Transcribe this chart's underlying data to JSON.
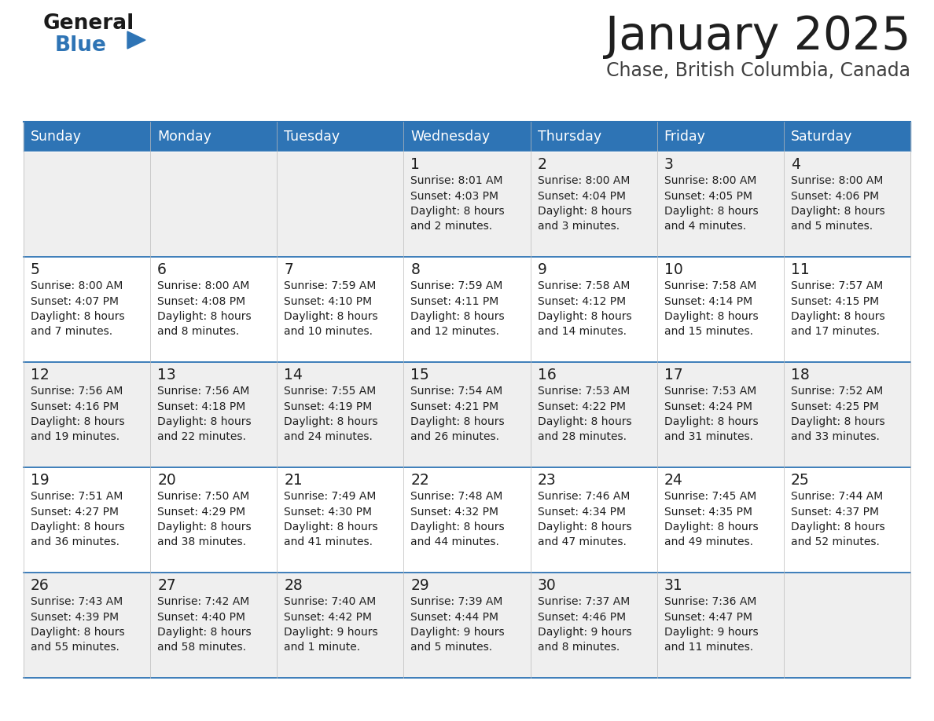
{
  "title": "January 2025",
  "subtitle": "Chase, British Columbia, Canada",
  "header_bg_color": "#2E74B5",
  "header_text_color": "#FFFFFF",
  "day_names": [
    "Sunday",
    "Monday",
    "Tuesday",
    "Wednesday",
    "Thursday",
    "Friday",
    "Saturday"
  ],
  "row_bg_even": "#EFEFEF",
  "row_bg_odd": "#FFFFFF",
  "cell_border_color": "#2E74B5",
  "date_color": "#1F1F1F",
  "info_color": "#1F1F1F",
  "title_color": "#1F1F1F",
  "subtitle_color": "#404040",
  "logo_general_color": "#1A1A1A",
  "logo_blue_color": "#2E74B5",
  "calendar_data": [
    [
      {
        "day": null,
        "sunrise": null,
        "sunset": null,
        "daylight": null
      },
      {
        "day": null,
        "sunrise": null,
        "sunset": null,
        "daylight": null
      },
      {
        "day": null,
        "sunrise": null,
        "sunset": null,
        "daylight": null
      },
      {
        "day": 1,
        "sunrise": "8:01 AM",
        "sunset": "4:03 PM",
        "daylight": "8 hours\nand 2 minutes."
      },
      {
        "day": 2,
        "sunrise": "8:00 AM",
        "sunset": "4:04 PM",
        "daylight": "8 hours\nand 3 minutes."
      },
      {
        "day": 3,
        "sunrise": "8:00 AM",
        "sunset": "4:05 PM",
        "daylight": "8 hours\nand 4 minutes."
      },
      {
        "day": 4,
        "sunrise": "8:00 AM",
        "sunset": "4:06 PM",
        "daylight": "8 hours\nand 5 minutes."
      }
    ],
    [
      {
        "day": 5,
        "sunrise": "8:00 AM",
        "sunset": "4:07 PM",
        "daylight": "8 hours\nand 7 minutes."
      },
      {
        "day": 6,
        "sunrise": "8:00 AM",
        "sunset": "4:08 PM",
        "daylight": "8 hours\nand 8 minutes."
      },
      {
        "day": 7,
        "sunrise": "7:59 AM",
        "sunset": "4:10 PM",
        "daylight": "8 hours\nand 10 minutes."
      },
      {
        "day": 8,
        "sunrise": "7:59 AM",
        "sunset": "4:11 PM",
        "daylight": "8 hours\nand 12 minutes."
      },
      {
        "day": 9,
        "sunrise": "7:58 AM",
        "sunset": "4:12 PM",
        "daylight": "8 hours\nand 14 minutes."
      },
      {
        "day": 10,
        "sunrise": "7:58 AM",
        "sunset": "4:14 PM",
        "daylight": "8 hours\nand 15 minutes."
      },
      {
        "day": 11,
        "sunrise": "7:57 AM",
        "sunset": "4:15 PM",
        "daylight": "8 hours\nand 17 minutes."
      }
    ],
    [
      {
        "day": 12,
        "sunrise": "7:56 AM",
        "sunset": "4:16 PM",
        "daylight": "8 hours\nand 19 minutes."
      },
      {
        "day": 13,
        "sunrise": "7:56 AM",
        "sunset": "4:18 PM",
        "daylight": "8 hours\nand 22 minutes."
      },
      {
        "day": 14,
        "sunrise": "7:55 AM",
        "sunset": "4:19 PM",
        "daylight": "8 hours\nand 24 minutes."
      },
      {
        "day": 15,
        "sunrise": "7:54 AM",
        "sunset": "4:21 PM",
        "daylight": "8 hours\nand 26 minutes."
      },
      {
        "day": 16,
        "sunrise": "7:53 AM",
        "sunset": "4:22 PM",
        "daylight": "8 hours\nand 28 minutes."
      },
      {
        "day": 17,
        "sunrise": "7:53 AM",
        "sunset": "4:24 PM",
        "daylight": "8 hours\nand 31 minutes."
      },
      {
        "day": 18,
        "sunrise": "7:52 AM",
        "sunset": "4:25 PM",
        "daylight": "8 hours\nand 33 minutes."
      }
    ],
    [
      {
        "day": 19,
        "sunrise": "7:51 AM",
        "sunset": "4:27 PM",
        "daylight": "8 hours\nand 36 minutes."
      },
      {
        "day": 20,
        "sunrise": "7:50 AM",
        "sunset": "4:29 PM",
        "daylight": "8 hours\nand 38 minutes."
      },
      {
        "day": 21,
        "sunrise": "7:49 AM",
        "sunset": "4:30 PM",
        "daylight": "8 hours\nand 41 minutes."
      },
      {
        "day": 22,
        "sunrise": "7:48 AM",
        "sunset": "4:32 PM",
        "daylight": "8 hours\nand 44 minutes."
      },
      {
        "day": 23,
        "sunrise": "7:46 AM",
        "sunset": "4:34 PM",
        "daylight": "8 hours\nand 47 minutes."
      },
      {
        "day": 24,
        "sunrise": "7:45 AM",
        "sunset": "4:35 PM",
        "daylight": "8 hours\nand 49 minutes."
      },
      {
        "day": 25,
        "sunrise": "7:44 AM",
        "sunset": "4:37 PM",
        "daylight": "8 hours\nand 52 minutes."
      }
    ],
    [
      {
        "day": 26,
        "sunrise": "7:43 AM",
        "sunset": "4:39 PM",
        "daylight": "8 hours\nand 55 minutes."
      },
      {
        "day": 27,
        "sunrise": "7:42 AM",
        "sunset": "4:40 PM",
        "daylight": "8 hours\nand 58 minutes."
      },
      {
        "day": 28,
        "sunrise": "7:40 AM",
        "sunset": "4:42 PM",
        "daylight": "9 hours\nand 1 minute."
      },
      {
        "day": 29,
        "sunrise": "7:39 AM",
        "sunset": "4:44 PM",
        "daylight": "9 hours\nand 5 minutes."
      },
      {
        "day": 30,
        "sunrise": "7:37 AM",
        "sunset": "4:46 PM",
        "daylight": "9 hours\nand 8 minutes."
      },
      {
        "day": 31,
        "sunrise": "7:36 AM",
        "sunset": "4:47 PM",
        "daylight": "9 hours\nand 11 minutes."
      },
      {
        "day": null,
        "sunrise": null,
        "sunset": null,
        "daylight": null
      }
    ]
  ]
}
